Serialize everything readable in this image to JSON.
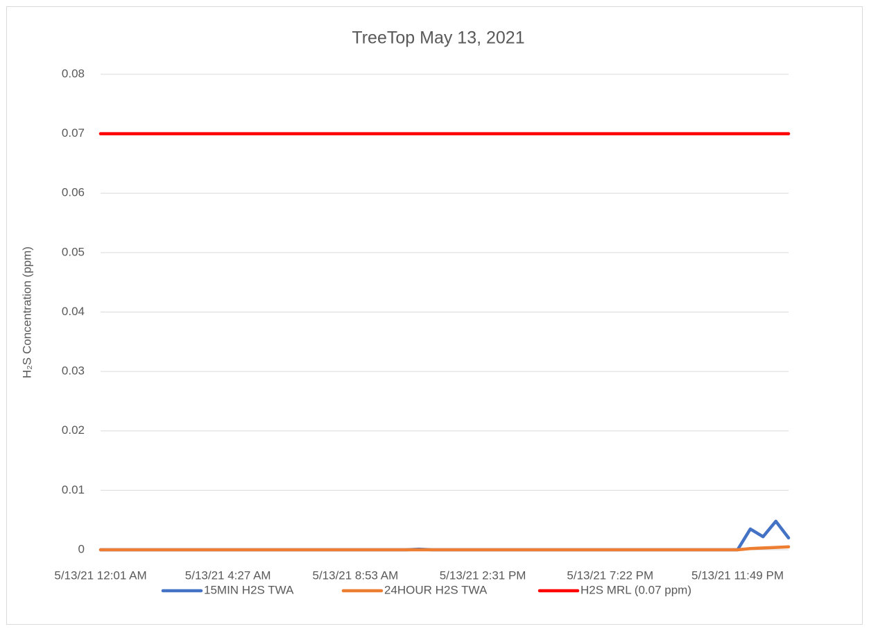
{
  "chart_data": {
    "type": "line",
    "title": "TreeTop May 13, 2021",
    "y_label": "H₂S Concentration (ppm)",
    "categories": [
      "5/13/21 12:01 AM",
      null,
      null,
      null,
      null,
      null,
      null,
      null,
      null,
      null,
      "5/13/21 4:27 AM",
      null,
      null,
      null,
      null,
      null,
      null,
      null,
      null,
      null,
      "5/13/21 8:53 AM",
      null,
      null,
      null,
      null,
      null,
      null,
      null,
      null,
      null,
      "5/13/21 2:31 PM",
      null,
      null,
      null,
      null,
      null,
      null,
      null,
      null,
      null,
      "5/13/21 7:22 PM",
      null,
      null,
      null,
      null,
      null,
      null,
      null,
      null,
      null,
      "5/13/21 11:49 PM",
      null,
      null,
      null,
      null
    ],
    "series": [
      {
        "name": "15MIN H2S TWA",
        "color": "#4472c4",
        "values": [
          0,
          0,
          0,
          0,
          0,
          0,
          0,
          0,
          0,
          0,
          0,
          0,
          0,
          0,
          0,
          0,
          0,
          0,
          0,
          0,
          0,
          0,
          0,
          0,
          0,
          0.0001,
          0,
          0,
          0,
          0,
          0,
          0,
          0,
          0,
          0,
          0,
          0,
          0,
          0,
          0,
          0,
          0,
          0,
          0,
          0,
          0,
          0,
          0,
          0,
          0,
          0,
          0.0035,
          0.0022,
          0.0048,
          0.002
        ]
      },
      {
        "name": "24HOUR H2S TWA",
        "color": "#ed7d31",
        "values": [
          0,
          0,
          0,
          0,
          0,
          0,
          0,
          0,
          0,
          0,
          0,
          0,
          0,
          0,
          0,
          0,
          0,
          0,
          0,
          0,
          0,
          0,
          0,
          0,
          0,
          0,
          0,
          0,
          0,
          0,
          0,
          0,
          0,
          0,
          0,
          0,
          0,
          0,
          0,
          0,
          0,
          0,
          0,
          0,
          0,
          0,
          0,
          0,
          0,
          0,
          0,
          0.0002,
          0.0003,
          0.0004,
          0.0005
        ]
      },
      {
        "name": "H2S MRL (0.07 ppm)",
        "color": "#ff0000",
        "values": [
          0.07,
          0.07,
          0.07,
          0.07,
          0.07,
          0.07,
          0.07,
          0.07,
          0.07,
          0.07,
          0.07,
          0.07,
          0.07,
          0.07,
          0.07,
          0.07,
          0.07,
          0.07,
          0.07,
          0.07,
          0.07,
          0.07,
          0.07,
          0.07,
          0.07,
          0.07,
          0.07,
          0.07,
          0.07,
          0.07,
          0.07,
          0.07,
          0.07,
          0.07,
          0.07,
          0.07,
          0.07,
          0.07,
          0.07,
          0.07,
          0.07,
          0.07,
          0.07,
          0.07,
          0.07,
          0.07,
          0.07,
          0.07,
          0.07,
          0.07,
          0.07,
          0.07,
          0.07,
          0.07,
          0.07
        ]
      }
    ],
    "ylim": [
      0,
      0.08
    ],
    "yticks": [
      0,
      0.01,
      0.02,
      0.03,
      0.04,
      0.05,
      0.06,
      0.07,
      0.08
    ],
    "grid": true,
    "legend": "bottom"
  }
}
